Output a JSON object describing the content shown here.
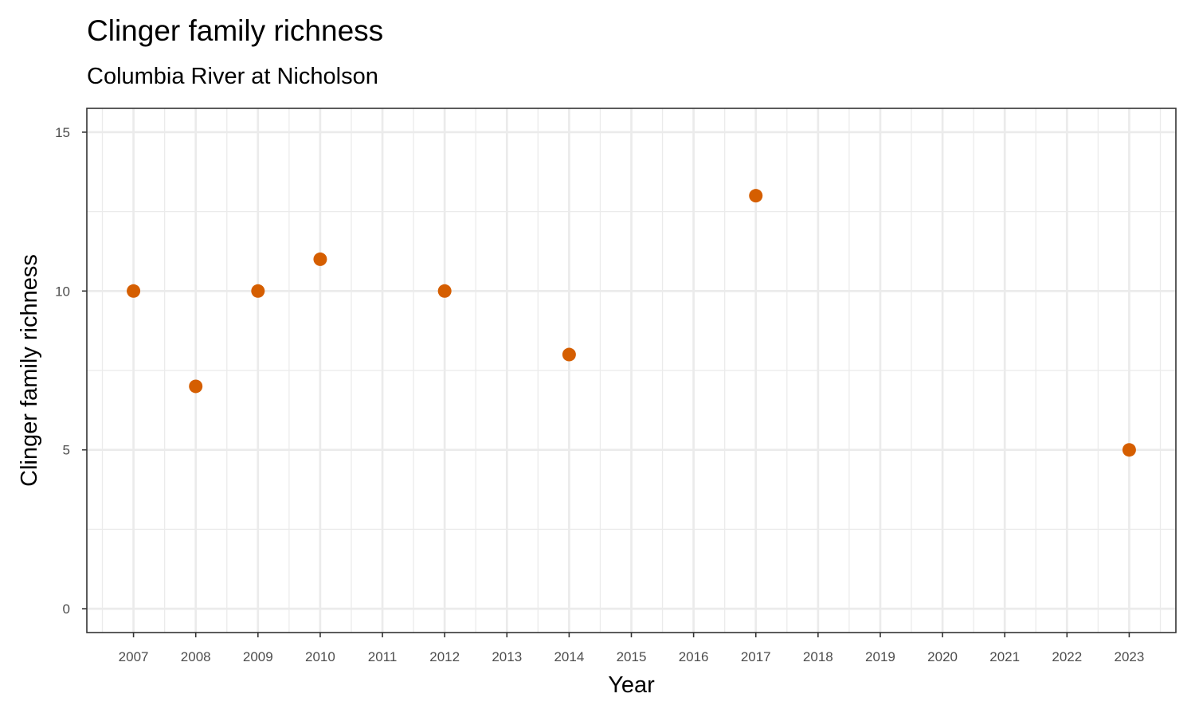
{
  "chart_data": {
    "type": "scatter",
    "title": "Clinger family richness",
    "subtitle": "Columbia River at Nicholson",
    "xlabel": "Year",
    "ylabel": "Clinger family richness",
    "xlim": [
      2006.25,
      2023.75
    ],
    "ylim": [
      -0.75,
      15.75
    ],
    "x_ticks": [
      2007,
      2008,
      2009,
      2010,
      2011,
      2012,
      2013,
      2014,
      2015,
      2016,
      2017,
      2018,
      2019,
      2020,
      2021,
      2022,
      2023
    ],
    "y_ticks": [
      0,
      5,
      10,
      15
    ],
    "grid": true,
    "point_color": "#D55E00",
    "series": [
      {
        "x": [
          2007,
          2008,
          2009,
          2010,
          2012,
          2014,
          2017,
          2023
        ],
        "y": [
          10,
          7,
          10,
          11,
          10,
          8,
          13,
          5
        ]
      }
    ]
  }
}
